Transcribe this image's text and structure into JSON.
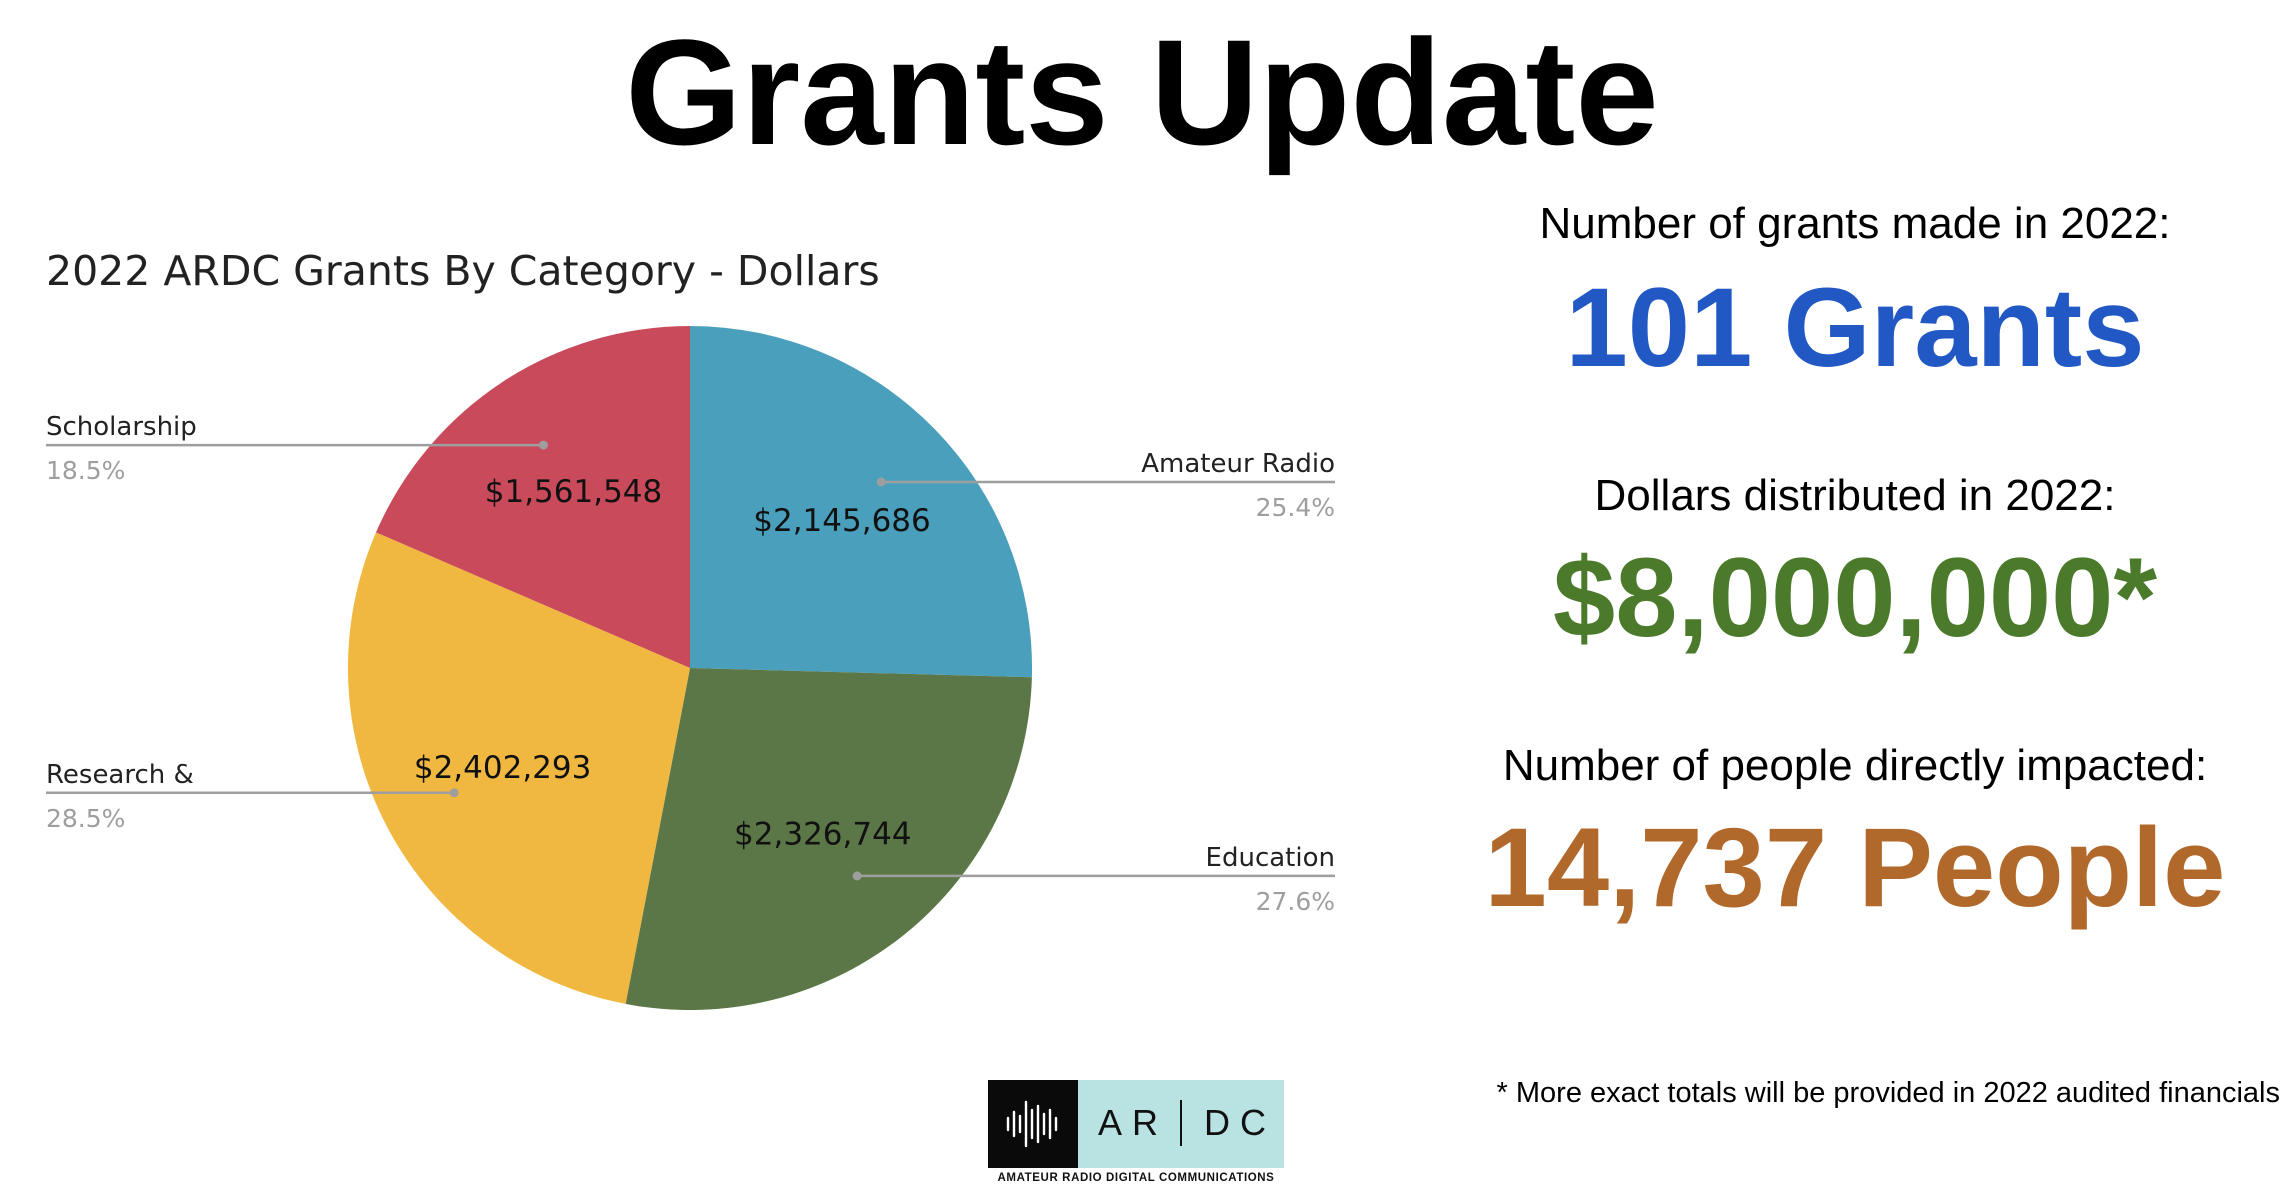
{
  "title": "Grants Update",
  "chart_data": {
    "type": "pie",
    "title": "2022 ARDC Grants By Category - Dollars",
    "slices": [
      {
        "label": "Amateur Radio",
        "value": 2145686,
        "value_label": "$2,145,686",
        "percent": 25.4,
        "percent_label": "25.4%",
        "color": "#4aa0bc"
      },
      {
        "label": "Education",
        "value": 2326744,
        "value_label": "$2,326,744",
        "percent": 27.6,
        "percent_label": "27.6%",
        "color": "#5b7748"
      },
      {
        "label": "Research &",
        "value": 2402293,
        "value_label": "$2,402,293",
        "percent": 28.5,
        "percent_label": "28.5%",
        "color": "#f0b841"
      },
      {
        "label": "Scholarship",
        "value": 1561548,
        "value_label": "$1,561,548",
        "percent": 18.5,
        "percent_label": "18.5%",
        "color": "#c94a5a"
      }
    ],
    "legend": "callout-labels"
  },
  "stats": [
    {
      "label": "Number of grants made in 2022:",
      "value": "101 Grants",
      "color": "#2158c4"
    },
    {
      "label": "Dollars distributed in 2022:",
      "value": "$8,000,000*",
      "color": "#4a7a2a"
    },
    {
      "label": "Number of people directly impacted:",
      "value": "14,737 People",
      "color": "#b0692a"
    }
  ],
  "footnote": "* More exact totals will be provided in 2022 audited financials",
  "logo": {
    "wordmark_left": "AR",
    "wordmark_right": "DC",
    "tagline": "AMATEUR RADIO DIGITAL COMMUNICATIONS"
  }
}
